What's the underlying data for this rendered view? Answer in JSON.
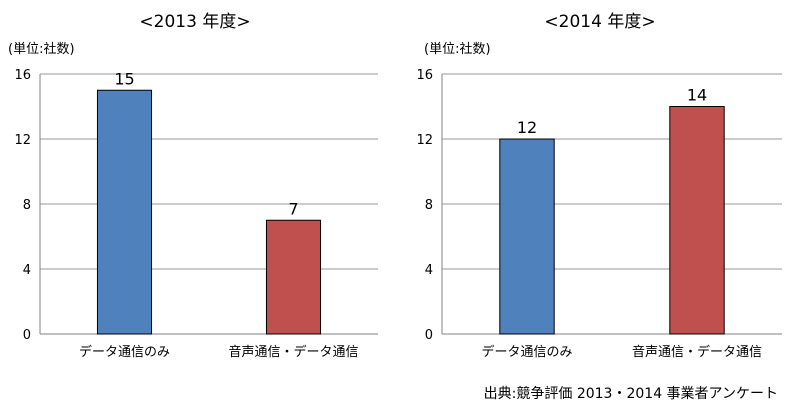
{
  "chart_data": [
    {
      "type": "bar",
      "title": "<2013 年度>",
      "unit_label": "(単位:社数)",
      "categories": [
        "データ通信のみ",
        "音声通信・データ通信"
      ],
      "values": [
        15,
        7
      ],
      "ylim": [
        0,
        16
      ],
      "yticks": [
        "0",
        "4",
        "8",
        "12",
        "16"
      ],
      "grid": true,
      "bar_colors": [
        "#4f81bd",
        "#c0504d"
      ]
    },
    {
      "type": "bar",
      "title": "<2014 年度>",
      "unit_label": "(単位:社数)",
      "categories": [
        "データ通信のみ",
        "音声通信・データ通信"
      ],
      "values": [
        12,
        14
      ],
      "ylim": [
        0,
        16
      ],
      "yticks": [
        "0",
        "4",
        "8",
        "12",
        "16"
      ],
      "grid": true,
      "bar_colors": [
        "#4f81bd",
        "#c0504d"
      ]
    }
  ],
  "source": "出典:競争評価 2013・2014 事業者アンケート"
}
